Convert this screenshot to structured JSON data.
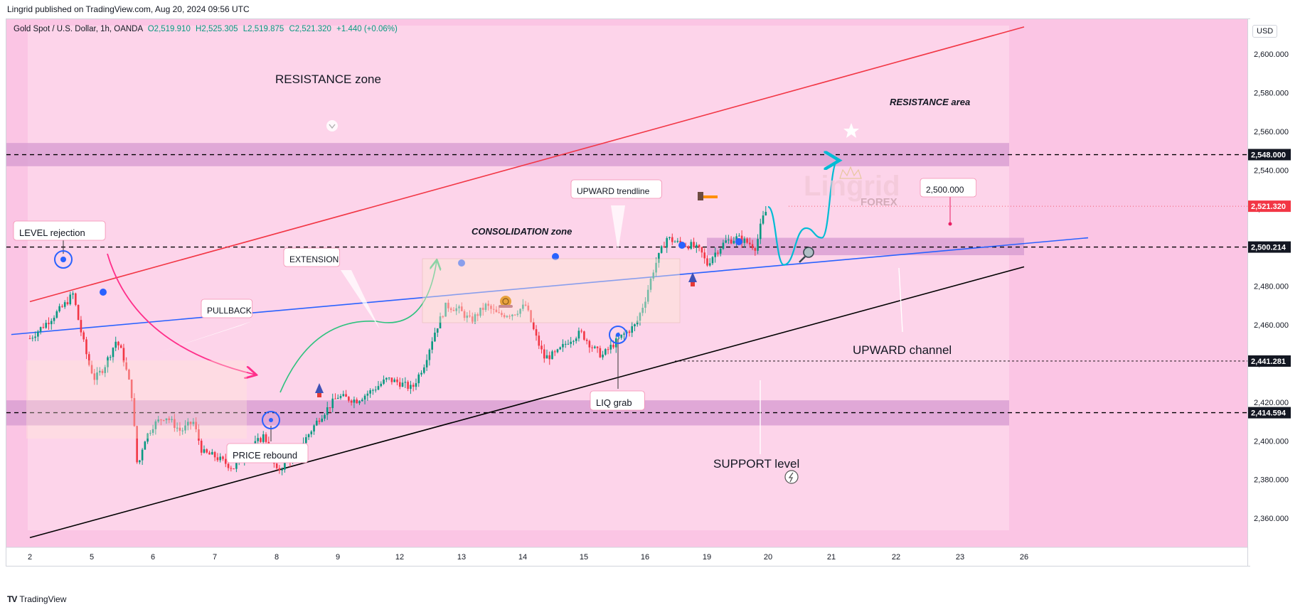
{
  "header": {
    "publisher": "Lingrid published on TradingView.com, Aug 20, 2024 09:56 UTC"
  },
  "legend": {
    "symbol": "Gold Spot / U.S. Dollar, 1h, OANDA",
    "open": "O2,519.910",
    "high": "H2,525.305",
    "low": "L2,519.875",
    "close": "C2,521.320",
    "change": "+1.440 (+0.06%)"
  },
  "price_scale": {
    "currency": "USD"
  },
  "watermark": {
    "brand": "Lingrid",
    "sub": "FOREX"
  },
  "footer": {
    "brand": "TradingView"
  },
  "colors": {
    "up": "#089981",
    "down": "#f23645",
    "resistance_line": "#f23645",
    "trendline": "#2962ff",
    "support_line": "#000000",
    "zone_fill": "#d59ad0",
    "projection": "#00bcd4",
    "price_label_red": "#f23645"
  },
  "chart_data": {
    "type": "candlestick",
    "instrument": "Gold Spot / U.S. Dollar",
    "timeframe": "1h",
    "y_axis": {
      "ticks": [
        2360,
        2380,
        2400,
        2420,
        2440,
        2460,
        2480,
        2500,
        2520,
        2540,
        2560,
        2580,
        2600
      ],
      "tick_labels": [
        "2,360.000",
        "2,380.000",
        "2,400.000",
        "2,420.000",
        "2,440.000",
        "2,460.000",
        "2,480.000",
        "2,500.000",
        "2,520.000",
        "2,540.000",
        "2,560.000",
        "2,580.000",
        "2,600.000"
      ],
      "range": [
        2345,
        2618
      ]
    },
    "x_axis": {
      "tick_labels": [
        "2",
        "5",
        "6",
        "7",
        "8",
        "9",
        "12",
        "13",
        "14",
        "15",
        "16",
        "19",
        "20",
        "21",
        "22",
        "23",
        "26"
      ],
      "range_index": [
        0,
        16
      ]
    },
    "price_labels": [
      {
        "value": 2548.0,
        "text": "2,548.000",
        "style": "dark"
      },
      {
        "value": 2521.32,
        "text": "2,521.320",
        "style": "red"
      },
      {
        "value": 2500.214,
        "text": "2,500.214",
        "style": "dark"
      },
      {
        "value": 2441.281,
        "text": "2,441.281",
        "style": "dark"
      },
      {
        "value": 2414.594,
        "text": "2,414.594",
        "style": "dark"
      }
    ],
    "horizontal_levels": [
      2548.0,
      2500.214,
      2441.281,
      2414.594
    ],
    "zones": [
      {
        "from": 2542,
        "to": 2554
      },
      {
        "from": 2408,
        "to": 2421
      },
      {
        "from": 2496,
        "to": 2505,
        "x_from": 11.0,
        "x_to": 16.0
      }
    ],
    "trend_lines": [
      {
        "name": "resistance",
        "from": {
          "x": 0.0,
          "y": 2472
        },
        "to": {
          "x": 16.0,
          "y": 2614
        }
      },
      {
        "name": "upward-trendline",
        "from": {
          "x": -0.3,
          "y": 2455
        },
        "to": {
          "x": 17.0,
          "y": 2505
        }
      },
      {
        "name": "support",
        "from": {
          "x": 0.0,
          "y": 2350
        },
        "to": {
          "x": 16.0,
          "y": 2490
        }
      }
    ],
    "annotations": [
      {
        "text": "RESISTANCE zone"
      },
      {
        "text": "RESISTANCE area"
      },
      {
        "text": "LEVEL rejection"
      },
      {
        "text": "PULLBACK"
      },
      {
        "text": "EXTENSION"
      },
      {
        "text": "CONSOLIDATION zone"
      },
      {
        "text": "UPWARD trendline"
      },
      {
        "text": "2,500.000"
      },
      {
        "text": "UPWARD channel"
      },
      {
        "text": "LIQ grab"
      },
      {
        "text": "PRICE rebound"
      },
      {
        "text": "SUPPORT level"
      }
    ],
    "close_series": [
      {
        "x": 0.0,
        "y": 2453
      },
      {
        "x": 0.3,
        "y": 2462
      },
      {
        "x": 0.55,
        "y": 2470
      },
      {
        "x": 0.7,
        "y": 2476
      },
      {
        "x": 0.8,
        "y": 2460
      },
      {
        "x": 0.95,
        "y": 2440
      },
      {
        "x": 1.05,
        "y": 2432
      },
      {
        "x": 1.2,
        "y": 2438
      },
      {
        "x": 1.3,
        "y": 2445
      },
      {
        "x": 1.4,
        "y": 2452
      },
      {
        "x": 1.5,
        "y": 2445
      },
      {
        "x": 1.65,
        "y": 2425
      },
      {
        "x": 1.75,
        "y": 2385
      },
      {
        "x": 1.85,
        "y": 2400
      },
      {
        "x": 2.0,
        "y": 2408
      },
      {
        "x": 2.2,
        "y": 2413
      },
      {
        "x": 2.45,
        "y": 2405
      },
      {
        "x": 2.65,
        "y": 2410
      },
      {
        "x": 2.8,
        "y": 2394
      },
      {
        "x": 3.0,
        "y": 2392
      },
      {
        "x": 3.3,
        "y": 2386
      },
      {
        "x": 3.55,
        "y": 2395
      },
      {
        "x": 3.8,
        "y": 2403
      },
      {
        "x": 4.0,
        "y": 2384
      },
      {
        "x": 4.2,
        "y": 2390
      },
      {
        "x": 4.45,
        "y": 2400
      },
      {
        "x": 4.7,
        "y": 2412
      },
      {
        "x": 5.0,
        "y": 2423
      },
      {
        "x": 5.3,
        "y": 2421
      },
      {
        "x": 5.55,
        "y": 2426
      },
      {
        "x": 5.8,
        "y": 2432
      },
      {
        "x": 6.0,
        "y": 2430
      },
      {
        "x": 6.2,
        "y": 2427
      },
      {
        "x": 6.4,
        "y": 2440
      },
      {
        "x": 6.55,
        "y": 2455
      },
      {
        "x": 6.75,
        "y": 2470
      },
      {
        "x": 6.95,
        "y": 2468
      },
      {
        "x": 7.15,
        "y": 2462
      },
      {
        "x": 7.4,
        "y": 2470
      },
      {
        "x": 7.6,
        "y": 2465
      },
      {
        "x": 7.85,
        "y": 2466
      },
      {
        "x": 8.05,
        "y": 2470
      },
      {
        "x": 8.2,
        "y": 2455
      },
      {
        "x": 8.35,
        "y": 2443
      },
      {
        "x": 8.55,
        "y": 2445
      },
      {
        "x": 8.75,
        "y": 2452
      },
      {
        "x": 8.95,
        "y": 2456
      },
      {
        "x": 9.15,
        "y": 2448
      },
      {
        "x": 9.3,
        "y": 2444
      },
      {
        "x": 9.45,
        "y": 2449
      },
      {
        "x": 9.65,
        "y": 2455
      },
      {
        "x": 9.85,
        "y": 2460
      },
      {
        "x": 10.0,
        "y": 2473
      },
      {
        "x": 10.15,
        "y": 2490
      },
      {
        "x": 10.35,
        "y": 2505
      },
      {
        "x": 10.55,
        "y": 2502
      },
      {
        "x": 10.75,
        "y": 2501
      },
      {
        "x": 10.9,
        "y": 2498
      },
      {
        "x": 11.0,
        "y": 2491
      },
      {
        "x": 11.1,
        "y": 2496
      },
      {
        "x": 11.3,
        "y": 2503
      },
      {
        "x": 11.5,
        "y": 2505
      },
      {
        "x": 11.7,
        "y": 2502
      },
      {
        "x": 11.8,
        "y": 2500
      },
      {
        "x": 11.9,
        "y": 2514
      },
      {
        "x": 12.0,
        "y": 2521
      }
    ],
    "projection": [
      {
        "x": 12.0,
        "y": 2521
      },
      {
        "x": 12.25,
        "y": 2491
      },
      {
        "x": 12.6,
        "y": 2510
      },
      {
        "x": 12.85,
        "y": 2505
      },
      {
        "x": 13.1,
        "y": 2545
      }
    ]
  }
}
